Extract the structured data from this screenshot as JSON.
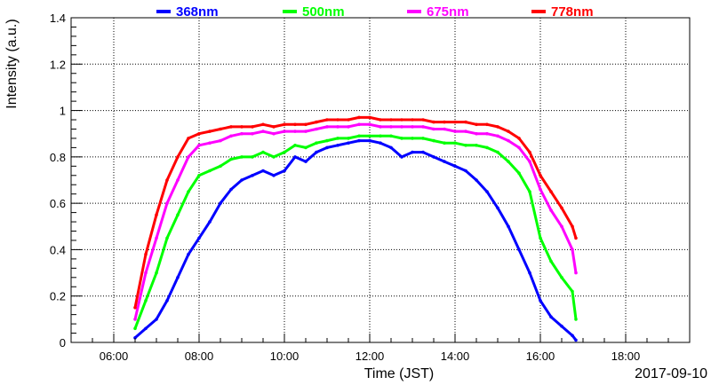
{
  "chart_data": {
    "type": "scatter",
    "title": "",
    "xlabel": "Time (JST)",
    "ylabel": "Intensity (a.u.)",
    "date_label": "2017-09-10",
    "xlim": [
      "05:00",
      "19:30"
    ],
    "ylim": [
      0,
      1.4
    ],
    "grid": true,
    "legend_position": "top",
    "x_ticks": [
      "06:00",
      "08:00",
      "10:00",
      "12:00",
      "14:00",
      "16:00",
      "18:00"
    ],
    "y_ticks": [
      "0",
      "0.2",
      "0.4",
      "0.6",
      "0.8",
      "1",
      "1.2",
      "1.4"
    ],
    "x": [
      "06:30",
      "06:45",
      "07:00",
      "07:15",
      "07:30",
      "07:45",
      "08:00",
      "08:15",
      "08:30",
      "08:45",
      "09:00",
      "09:15",
      "09:30",
      "09:45",
      "10:00",
      "10:15",
      "10:30",
      "10:45",
      "11:00",
      "11:15",
      "11:30",
      "11:45",
      "12:00",
      "12:15",
      "12:30",
      "12:45",
      "13:00",
      "13:15",
      "13:30",
      "13:45",
      "14:00",
      "14:15",
      "14:30",
      "14:45",
      "15:00",
      "15:15",
      "15:30",
      "15:45",
      "16:00",
      "16:15",
      "16:30",
      "16:45",
      "16:50"
    ],
    "series": [
      {
        "name": "368nm",
        "color": "#0000ff",
        "values": [
          0.02,
          0.06,
          0.1,
          0.18,
          0.28,
          0.38,
          0.45,
          0.52,
          0.6,
          0.66,
          0.7,
          0.72,
          0.74,
          0.72,
          0.74,
          0.8,
          0.78,
          0.82,
          0.84,
          0.85,
          0.86,
          0.87,
          0.87,
          0.86,
          0.84,
          0.8,
          0.82,
          0.82,
          0.8,
          0.78,
          0.76,
          0.74,
          0.7,
          0.65,
          0.58,
          0.5,
          0.4,
          0.3,
          0.18,
          0.11,
          0.07,
          0.03,
          0.01
        ]
      },
      {
        "name": "500nm",
        "color": "#00ff00",
        "values": [
          0.06,
          0.18,
          0.3,
          0.45,
          0.55,
          0.65,
          0.72,
          0.74,
          0.76,
          0.79,
          0.8,
          0.8,
          0.82,
          0.8,
          0.82,
          0.85,
          0.84,
          0.86,
          0.87,
          0.88,
          0.88,
          0.89,
          0.89,
          0.89,
          0.89,
          0.88,
          0.88,
          0.88,
          0.87,
          0.86,
          0.86,
          0.85,
          0.85,
          0.84,
          0.82,
          0.78,
          0.73,
          0.65,
          0.45,
          0.35,
          0.28,
          0.22,
          0.1
        ]
      },
      {
        "name": "675nm",
        "color": "#ff00ff",
        "values": [
          0.1,
          0.3,
          0.45,
          0.6,
          0.7,
          0.8,
          0.85,
          0.86,
          0.87,
          0.89,
          0.9,
          0.9,
          0.91,
          0.9,
          0.91,
          0.91,
          0.91,
          0.92,
          0.93,
          0.93,
          0.93,
          0.94,
          0.94,
          0.93,
          0.93,
          0.93,
          0.93,
          0.93,
          0.92,
          0.92,
          0.91,
          0.91,
          0.9,
          0.9,
          0.89,
          0.87,
          0.84,
          0.78,
          0.66,
          0.57,
          0.5,
          0.4,
          0.3
        ]
      },
      {
        "name": "778nm",
        "color": "#ff0000",
        "values": [
          0.15,
          0.38,
          0.55,
          0.7,
          0.8,
          0.88,
          0.9,
          0.91,
          0.92,
          0.93,
          0.93,
          0.93,
          0.94,
          0.93,
          0.94,
          0.94,
          0.94,
          0.95,
          0.96,
          0.96,
          0.96,
          0.97,
          0.97,
          0.96,
          0.96,
          0.96,
          0.96,
          0.96,
          0.95,
          0.95,
          0.95,
          0.95,
          0.94,
          0.94,
          0.93,
          0.91,
          0.88,
          0.82,
          0.72,
          0.65,
          0.58,
          0.5,
          0.45
        ]
      }
    ]
  }
}
